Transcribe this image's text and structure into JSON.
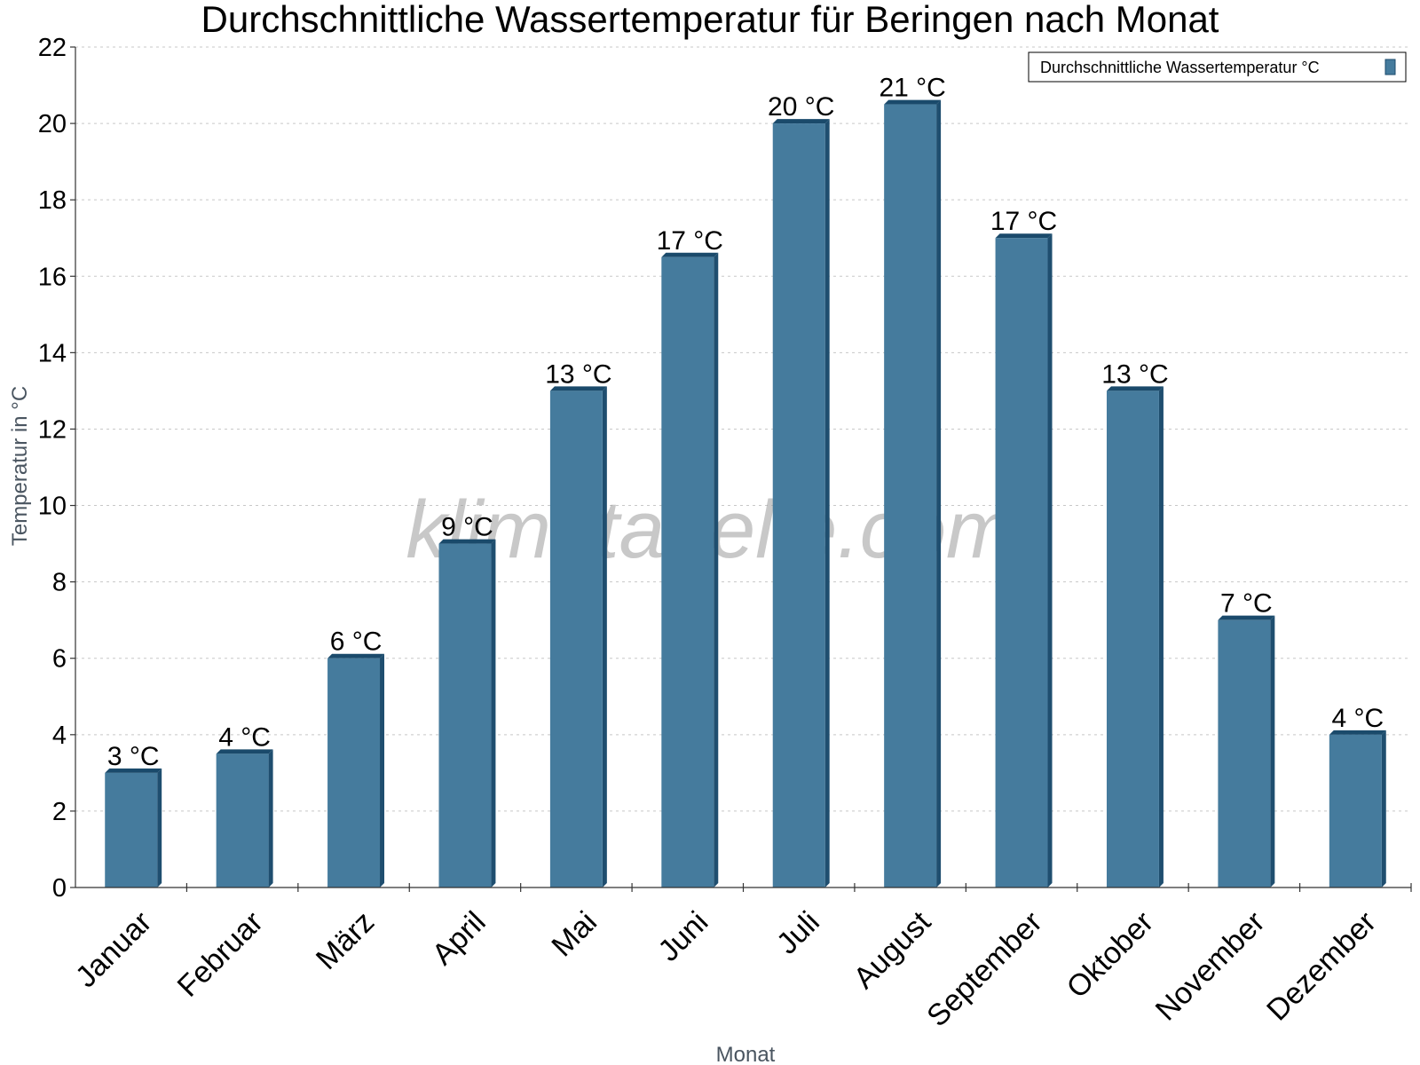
{
  "chart_data": {
    "type": "bar",
    "title": "Durchschnittliche Wassertemperatur für Beringen nach Monat",
    "xlabel": "Monat",
    "ylabel": "Temperatur in °C",
    "categories": [
      "Januar",
      "Februar",
      "März",
      "April",
      "Mai",
      "Juni",
      "Juli",
      "August",
      "September",
      "Oktober",
      "November",
      "Dezember"
    ],
    "series": [
      {
        "name": "Durchschnittliche Wassertemperatur °C",
        "values": [
          3,
          3.5,
          6,
          9,
          13,
          16.5,
          20,
          20.5,
          17,
          13,
          7,
          4
        ],
        "labels": [
          "3 °C",
          "4 °C",
          "6 °C",
          "9 °C",
          "13 °C",
          "17 °C",
          "20 °C",
          "21 °C",
          "17 °C",
          "13 °C",
          "7 °C",
          "4 °C"
        ],
        "color": "#457b9d"
      }
    ],
    "ylim": [
      0,
      22
    ],
    "yticks": [
      0,
      2,
      4,
      6,
      8,
      10,
      12,
      14,
      16,
      18,
      20,
      22
    ],
    "grid": true,
    "legend": "top-right",
    "watermark": "klimatabelle.com"
  },
  "colors": {
    "bar": "#457b9d",
    "bar_side": "#1f4e6f",
    "bar_top": "#1a4a6b"
  }
}
